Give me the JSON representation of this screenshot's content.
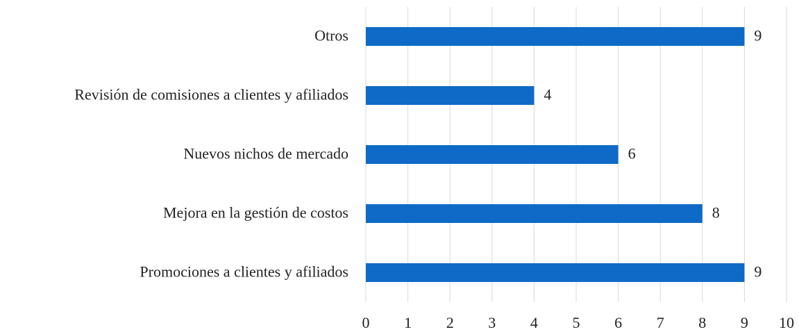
{
  "chart_data": {
    "type": "hbar",
    "categories": [
      "Otros",
      "Revisión de comisiones a clientes y afiliados",
      "Nuevos nichos de mercado",
      "Mejora en la gestión de costos",
      "Promociones a clientes y afiliados"
    ],
    "values": [
      9,
      4,
      6,
      8,
      9
    ],
    "color": "#0e6ac6",
    "xlim": [
      0,
      10
    ],
    "xticks": [
      0,
      1,
      2,
      3,
      4,
      5,
      6,
      7,
      8,
      9,
      10
    ],
    "grid": true
  }
}
